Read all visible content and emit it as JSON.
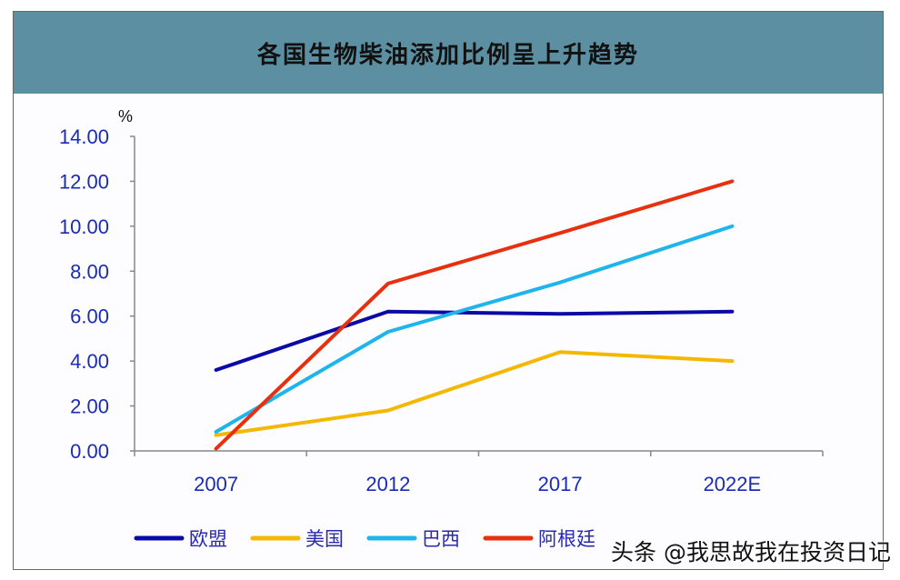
{
  "title": "各国生物柴油添加比例呈上升趋势",
  "watermark": "头条 @我思故我在投资日记",
  "chart_data": {
    "type": "line",
    "title": "各国生物柴油添加比例呈上升趋势",
    "ylabel": "%",
    "xlabel": "",
    "categories": [
      "2007",
      "2012",
      "2017",
      "2022E"
    ],
    "ylim": [
      0,
      14
    ],
    "yticks": [
      "0.00",
      "2.00",
      "4.00",
      "6.00",
      "8.00",
      "10.00",
      "12.00",
      "14.00"
    ],
    "grid": false,
    "legend": "bottom",
    "series": [
      {
        "name": "欧盟",
        "color": "#0a0aa8",
        "values": [
          3.6,
          6.2,
          6.1,
          6.2
        ]
      },
      {
        "name": "美国",
        "color": "#f5b800",
        "values": [
          0.7,
          1.8,
          4.4,
          4.0
        ]
      },
      {
        "name": "巴西",
        "color": "#1eb4ec",
        "values": [
          0.85,
          5.3,
          7.5,
          10.0
        ]
      },
      {
        "name": "阿根廷",
        "color": "#e8300f",
        "values": [
          0.1,
          7.45,
          9.7,
          12.0
        ]
      }
    ]
  }
}
